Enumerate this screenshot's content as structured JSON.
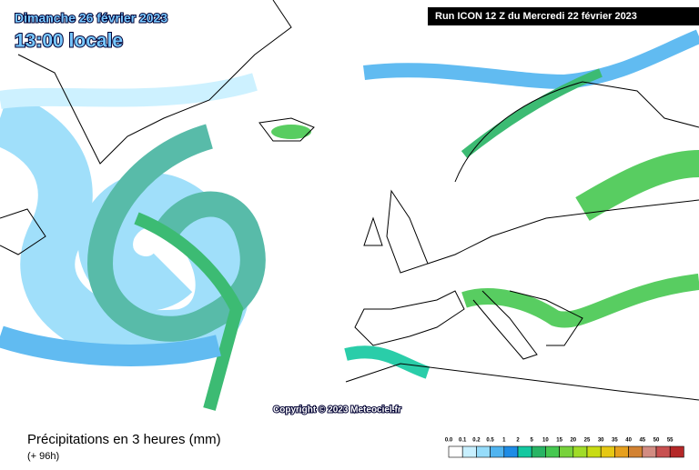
{
  "header": {
    "date": "Dimanche 26 février 2023",
    "time": "13:00 locale",
    "run": "Run ICON 12 Z du Mercredi 22 février 2023"
  },
  "copyright": "Copyright © 2023 Meteociel.fr",
  "footer": {
    "title": "Précipitations en 3 heures (mm)",
    "lead": "(+ 96h)"
  },
  "legend": [
    {
      "label": "0.0",
      "color": "#ffffff"
    },
    {
      "label": "0.1",
      "color": "#c8f0ff"
    },
    {
      "label": "0.2",
      "color": "#96dcfa"
    },
    {
      "label": "0.5",
      "color": "#50b4f0"
    },
    {
      "label": "1",
      "color": "#1e8ce6"
    },
    {
      "label": "2",
      "color": "#14c8a0"
    },
    {
      "label": "5",
      "color": "#28b464"
    },
    {
      "label": "10",
      "color": "#46c850"
    },
    {
      "label": "15",
      "color": "#78d23c"
    },
    {
      "label": "20",
      "color": "#a0dc28"
    },
    {
      "label": "25",
      "color": "#c8dc14"
    },
    {
      "label": "30",
      "color": "#e6c814"
    },
    {
      "label": "35",
      "color": "#e6a01e"
    },
    {
      "label": "40",
      "color": "#d28232"
    },
    {
      "label": "45",
      "color": "#d28c82"
    },
    {
      "label": "50",
      "color": "#c85050"
    },
    {
      "label": "55",
      "color": "#b42828"
    }
  ]
}
